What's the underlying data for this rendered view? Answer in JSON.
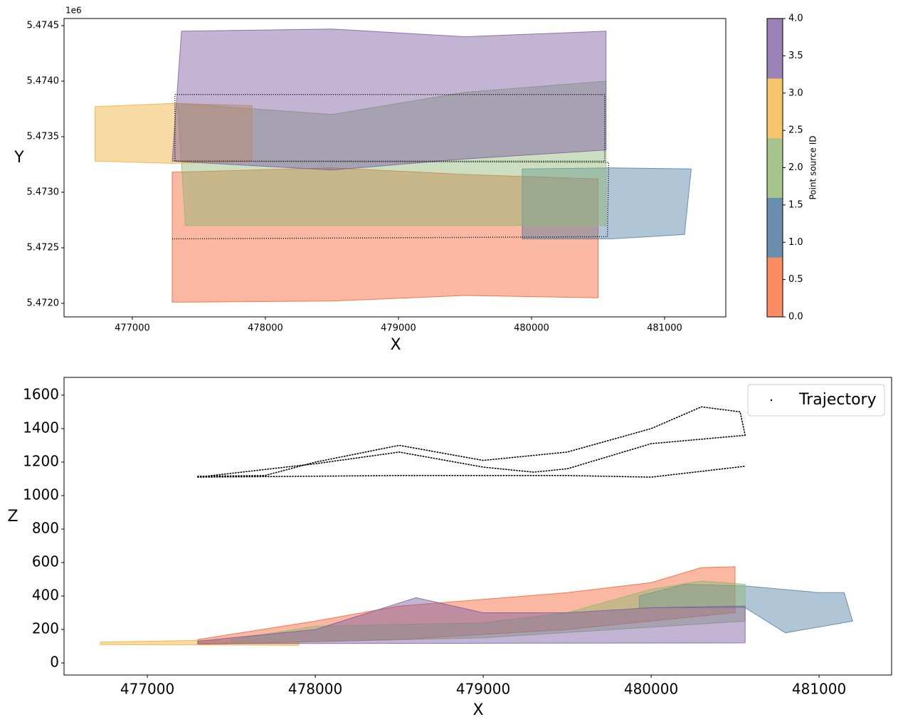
{
  "chart_data": [
    {
      "type": "scatter",
      "xlabel": "X",
      "ylabel": "Y",
      "y_offset_label": "1e6",
      "xlim": [
        476487,
        481460
      ],
      "ylim": [
        5.471878,
        5.474564
      ],
      "xticks": [
        477000,
        478000,
        479000,
        480000,
        481000
      ],
      "yticks": [
        {
          "value": 5.472,
          "label": "5.4720"
        },
        5.4725,
        {
          "value": 5.473,
          "label": "5.4730"
        },
        5.4735,
        {
          "value": 5.474,
          "label": "5.4740"
        },
        5.4745
      ],
      "series": [
        {
          "color": "#f4602f",
          "x": [
            477300,
            478500,
            479500,
            480500,
            480500,
            479500,
            478500,
            477300
          ],
          "y": [
            5.47318,
            5.47322,
            5.47316,
            5.47312,
            5.47205,
            5.47207,
            5.47202,
            5.47201
          ]
        },
        {
          "color": "#4f7ea3",
          "x": [
            479930,
            480600,
            481200,
            481150,
            480600,
            479930
          ],
          "y": [
            5.47321,
            5.47322,
            5.47321,
            5.47262,
            5.47258,
            5.47258
          ]
        },
        {
          "color": "#8fb873",
          "x": [
            477340,
            478500,
            479500,
            480560,
            480560,
            479000,
            477400
          ],
          "y": [
            5.4738,
            5.4737,
            5.4739,
            5.474,
            5.4727,
            5.4727,
            5.4727
          ]
        },
        {
          "color": "#f0ae35",
          "x": [
            476720,
            477300,
            477900,
            477900,
            477300,
            476720
          ],
          "y": [
            5.47377,
            5.4738,
            5.47378,
            5.47328,
            5.47326,
            5.47328
          ]
        },
        {
          "color": "#7a59a0",
          "x": [
            477370,
            478500,
            479500,
            480560,
            480560,
            479500,
            478500,
            477300
          ],
          "y": [
            5.47445,
            5.47447,
            5.4744,
            5.47445,
            5.47338,
            5.4733,
            5.4732,
            5.47328
          ]
        }
      ],
      "trajectory": {
        "color": "#000000",
        "x": [
          477320,
          480550,
          480550,
          477320,
          477320,
          null,
          477330,
          480580,
          480570,
          477300
        ],
        "y": [
          5.47388,
          5.47388,
          5.47328,
          5.47328,
          5.47388,
          null,
          5.47328,
          5.47327,
          5.4726,
          5.47258
        ]
      },
      "colorbar": {
        "label": "Point source ID",
        "lim": [
          0,
          4
        ],
        "colors": [
          "#fc8d62",
          "#6a8fae",
          "#a7c48d",
          "#f6c46a",
          "#9a82b7"
        ],
        "ticks": [
          {
            "value": 0,
            "label": "0.0"
          },
          0.5,
          {
            "value": 1,
            "label": "1.0"
          },
          1.5,
          {
            "value": 2,
            "label": "2.0"
          },
          2.5,
          {
            "value": 3,
            "label": "3.0"
          },
          3.5,
          {
            "value": 4,
            "label": "4.0"
          }
        ]
      }
    },
    {
      "type": "scatter",
      "xlabel": "X",
      "ylabel": "Z",
      "xlim": [
        476504,
        481432
      ],
      "ylim": [
        -72,
        1706
      ],
      "xticks": [
        477000,
        478000,
        479000,
        480000,
        481000
      ],
      "yticks": [
        0,
        200,
        400,
        600,
        800,
        1000,
        1200,
        1400,
        1600
      ],
      "legend": "upper right",
      "series": [
        {
          "color": "#f4602f",
          "x": [
            477300,
            478000,
            478500,
            479000,
            479500,
            480000,
            480300,
            480500,
            480500,
            479500,
            478500,
            477300
          ],
          "y": [
            140,
            250,
            340,
            380,
            420,
            480,
            570,
            575,
            300,
            200,
            140,
            110
          ]
        },
        {
          "color": "#4f7ea3",
          "x": [
            479930,
            480200,
            480560,
            481000,
            481150,
            481200,
            480800,
            480560,
            479930
          ],
          "y": [
            400,
            470,
            460,
            420,
            420,
            250,
            180,
            330,
            330
          ]
        },
        {
          "color": "#8fb873",
          "x": [
            477500,
            478000,
            479000,
            479500,
            480000,
            480300,
            480560,
            480560,
            479000,
            477500
          ],
          "y": [
            140,
            220,
            240,
            300,
            440,
            490,
            470,
            250,
            150,
            115
          ]
        },
        {
          "color": "#f0ae35",
          "x": [
            476720,
            477300,
            477900,
            477900,
            476720
          ],
          "y": [
            125,
            135,
            125,
            105,
            110
          ]
        },
        {
          "color": "#7a59a0",
          "x": [
            477300,
            478000,
            478600,
            479000,
            479500,
            480000,
            480560,
            480560,
            477300
          ],
          "y": [
            130,
            200,
            390,
            300,
            300,
            330,
            340,
            120,
            115
          ]
        },
        {
          "name": "Trajectory",
          "color": "#000000",
          "line": true,
          "x": [
            477300,
            477700,
            478000,
            478500,
            479000,
            479500,
            480000,
            480300,
            480530,
            480560,
            null,
            477300,
            478000,
            478500,
            479000,
            479300,
            479500,
            480000,
            480560,
            null,
            477300,
            478500,
            479500,
            480000,
            480560
          ],
          "y": [
            1115,
            1120,
            1200,
            1300,
            1210,
            1260,
            1400,
            1530,
            1500,
            1360,
            null,
            1110,
            1190,
            1260,
            1170,
            1140,
            1160,
            1310,
            1360,
            null,
            1110,
            1120,
            1120,
            1110,
            1175
          ]
        }
      ]
    }
  ]
}
